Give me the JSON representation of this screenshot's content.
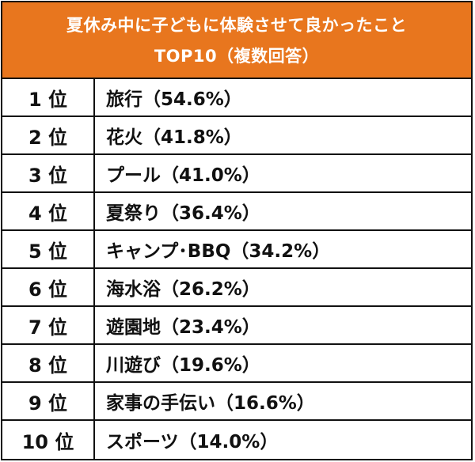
{
  "title": {
    "line1": "夏休み中に子どもに体験させて良かったこと",
    "line2": "TOP10（複数回答）"
  },
  "colors": {
    "header_background": "#e8761e",
    "header_text": "#ffffff",
    "border": "#111111"
  },
  "chart_data": {
    "type": "table",
    "title": "夏休み中に子どもに体験させて良かったこと TOP10（複数回答）",
    "unit": "%",
    "rows": [
      {
        "rank": 1,
        "rank_label": "1 位",
        "item": "旅行",
        "value": 54.6,
        "label": "旅行（54.6%）"
      },
      {
        "rank": 2,
        "rank_label": "2 位",
        "item": "花火",
        "value": 41.8,
        "label": "花火（41.8%）"
      },
      {
        "rank": 3,
        "rank_label": "3 位",
        "item": "プール",
        "value": 41.0,
        "label": "プール（41.0%）"
      },
      {
        "rank": 4,
        "rank_label": "4 位",
        "item": "夏祭り",
        "value": 36.4,
        "label": "夏祭り（36.4%）"
      },
      {
        "rank": 5,
        "rank_label": "5 位",
        "item": "キャンプ･BBQ",
        "value": 34.2,
        "label": "キャンプ･BBQ（34.2%）"
      },
      {
        "rank": 6,
        "rank_label": "6 位",
        "item": "海水浴",
        "value": 26.2,
        "label": "海水浴（26.2%）"
      },
      {
        "rank": 7,
        "rank_label": "7 位",
        "item": "遊園地",
        "value": 23.4,
        "label": "遊園地（23.4%）"
      },
      {
        "rank": 8,
        "rank_label": "8 位",
        "item": "川遊び",
        "value": 19.6,
        "label": "川遊び（19.6%）"
      },
      {
        "rank": 9,
        "rank_label": "9 位",
        "item": "家事の手伝い",
        "value": 16.6,
        "label": "家事の手伝い（16.6%）"
      },
      {
        "rank": 10,
        "rank_label": "10 位",
        "item": "スポーツ",
        "value": 14.0,
        "label": "スポーツ（14.0%）"
      }
    ]
  }
}
